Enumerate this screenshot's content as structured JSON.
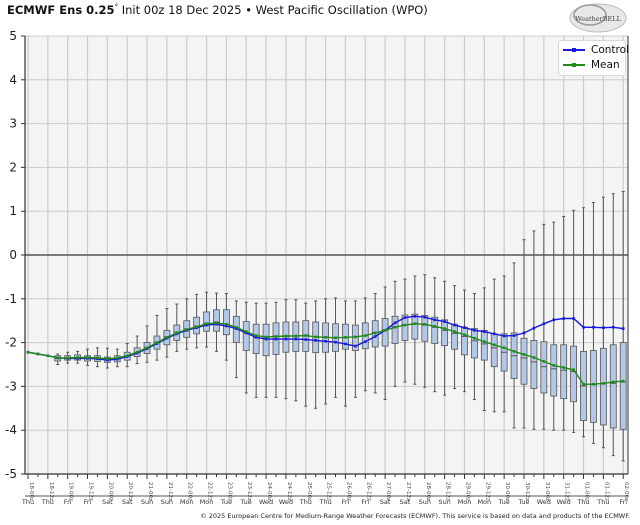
{
  "header": {
    "model": "ECMWF Ens 0.25",
    "degree": "°",
    "subtitle": " Init 00z 18 Dec 2025 • West Pacific Oscillation (WPO)",
    "logo_text": "WeatherBELL"
  },
  "footer": {
    "copyright": "© 2025 European Centre for Medium-Range Weather Forecasts (ECMWF). This service is based on data and products of the ECMWF."
  },
  "legend": {
    "items": [
      {
        "label": "Control",
        "color": "#1a1adb"
      },
      {
        "label": "Mean",
        "color": "#1e8a1e"
      }
    ]
  },
  "colors": {
    "control": "#1a1adb",
    "mean": "#1e8a1e",
    "box_fill": "#b3c8e6",
    "box_stroke": "#555555",
    "whisker": "#555555",
    "grid": "#cccccc",
    "plot_bg": "#f4f4f4",
    "zero_line": "#555555"
  },
  "chart_data": {
    "type": "boxplot+line",
    "title": "ECMWF Ens 0.25° Init 00z 18 Dec 2025 • West Pacific Oscillation (WPO)",
    "xlabel": "",
    "ylabel": "",
    "ylim": [
      -5,
      5
    ],
    "yticks": [
      5,
      4,
      3,
      2,
      1,
      0,
      -1,
      -2,
      -3,
      -4,
      -5
    ],
    "grid": true,
    "legend_position": "upper right",
    "x_tick_labels": [
      "18-00z",
      "18-12z",
      "19-00z",
      "19-12z",
      "20-00z",
      "20-12z",
      "21-00z",
      "21-12z",
      "22-00z",
      "22-12z",
      "23-00z",
      "23-12z",
      "24-00z",
      "24-12z",
      "25-00z",
      "25-12z",
      "26-00z",
      "26-12z",
      "27-00z",
      "27-12z",
      "28-00z",
      "28-12z",
      "29-00z",
      "29-12z",
      "30-00z",
      "30-12z",
      "31-00z",
      "31-12z",
      "01-00z",
      "01-12z",
      "02-00z"
    ],
    "x_day_labels": [
      "Thu",
      "Thu",
      "Fri",
      "Fri",
      "Sat",
      "Sat",
      "Sun",
      "Sun",
      "Mon",
      "Mon",
      "Tue",
      "Tue",
      "Wed",
      "Wed",
      "Thu",
      "Thu",
      "Fri",
      "Fri",
      "Sat",
      "Sat",
      "Sun",
      "Sun",
      "Mon",
      "Mon",
      "Tue",
      "Tue",
      "Wed",
      "Wed",
      "Thu",
      "Thu",
      "Fri"
    ],
    "step_hours": 6,
    "series": [
      {
        "name": "Control",
        "values": [
          -2.22,
          -2.26,
          -2.3,
          -2.35,
          -2.36,
          -2.36,
          -2.36,
          -2.37,
          -2.4,
          -2.38,
          -2.32,
          -2.24,
          -2.14,
          -2.02,
          -1.9,
          -1.8,
          -1.72,
          -1.66,
          -1.6,
          -1.58,
          -1.62,
          -1.68,
          -1.78,
          -1.88,
          -1.92,
          -1.92,
          -1.92,
          -1.92,
          -1.93,
          -1.95,
          -1.97,
          -1.99,
          -2.03,
          -2.08,
          -1.98,
          -1.86,
          -1.72,
          -1.55,
          -1.43,
          -1.4,
          -1.42,
          -1.48,
          -1.52,
          -1.6,
          -1.66,
          -1.72,
          -1.75,
          -1.8,
          -1.85,
          -1.84,
          -1.78,
          -1.67,
          -1.57,
          -1.48,
          -1.45,
          -1.45,
          -1.65,
          -1.65,
          -1.66,
          -1.65,
          -1.68
        ]
      },
      {
        "name": "Mean",
        "values": [
          -2.22,
          -2.26,
          -2.3,
          -2.35,
          -2.35,
          -2.34,
          -2.34,
          -2.35,
          -2.37,
          -2.35,
          -2.3,
          -2.22,
          -2.12,
          -2.0,
          -1.88,
          -1.78,
          -1.7,
          -1.64,
          -1.57,
          -1.55,
          -1.58,
          -1.65,
          -1.75,
          -1.84,
          -1.87,
          -1.86,
          -1.85,
          -1.85,
          -1.84,
          -1.87,
          -1.88,
          -1.89,
          -1.88,
          -1.87,
          -1.84,
          -1.78,
          -1.72,
          -1.65,
          -1.6,
          -1.57,
          -1.58,
          -1.63,
          -1.68,
          -1.75,
          -1.82,
          -1.9,
          -1.98,
          -2.05,
          -2.12,
          -2.2,
          -2.27,
          -2.34,
          -2.43,
          -2.52,
          -2.57,
          -2.62,
          -2.95,
          -2.95,
          -2.93,
          -2.9,
          -2.88
        ]
      }
    ],
    "boxes": {
      "q1": [
        null,
        null,
        null,
        -2.42,
        -2.4,
        -2.4,
        -2.42,
        -2.43,
        -2.45,
        -2.44,
        -2.4,
        -2.32,
        -2.25,
        -2.15,
        -2.05,
        -1.95,
        -1.88,
        -1.8,
        -1.74,
        -1.74,
        -1.82,
        -2.0,
        -2.18,
        -2.25,
        -2.3,
        -2.27,
        -2.22,
        -2.2,
        -2.2,
        -2.23,
        -2.22,
        -2.2,
        -2.15,
        -2.18,
        -2.14,
        -2.1,
        -2.08,
        -2.02,
        -1.95,
        -1.92,
        -1.97,
        -2.02,
        -2.07,
        -2.15,
        -2.28,
        -2.35,
        -2.4,
        -2.55,
        -2.65,
        -2.82,
        -2.95,
        -3.05,
        -3.15,
        -3.22,
        -3.28,
        -3.35,
        -3.78,
        -3.82,
        -3.88,
        -3.95,
        -3.98
      ],
      "q3": [
        null,
        null,
        null,
        -2.3,
        -2.3,
        -2.28,
        -2.3,
        -2.3,
        -2.33,
        -2.3,
        -2.22,
        -2.12,
        -2.0,
        -1.85,
        -1.72,
        -1.6,
        -1.5,
        -1.42,
        -1.3,
        -1.25,
        -1.25,
        -1.4,
        -1.52,
        -1.58,
        -1.58,
        -1.55,
        -1.53,
        -1.53,
        -1.5,
        -1.53,
        -1.55,
        -1.57,
        -1.58,
        -1.6,
        -1.55,
        -1.5,
        -1.45,
        -1.4,
        -1.37,
        -1.35,
        -1.38,
        -1.42,
        -1.48,
        -1.58,
        -1.65,
        -1.68,
        -1.72,
        -1.8,
        -1.8,
        -1.78,
        -1.9,
        -1.95,
        -1.98,
        -2.05,
        -2.05,
        -2.08,
        -2.2,
        -2.18,
        -2.13,
        -2.05,
        -2.0
      ],
      "median": [
        null,
        null,
        null,
        -2.36,
        -2.35,
        -2.34,
        -2.36,
        -2.37,
        -2.39,
        -2.37,
        -2.31,
        -2.23,
        -2.12,
        -1.99,
        -1.87,
        -1.76,
        -1.69,
        -1.62,
        -1.56,
        -1.53,
        -1.58,
        -1.66,
        -1.78,
        -1.88,
        -1.88,
        -1.85,
        -1.86,
        -1.85,
        -1.83,
        -1.86,
        -1.87,
        -1.88,
        -1.89,
        -1.87,
        -1.84,
        -1.77,
        -1.71,
        -1.64,
        -1.59,
        -1.56,
        -1.6,
        -1.65,
        -1.72,
        -1.79,
        -1.86,
        -1.96,
        -2.03,
        -2.12,
        -2.22,
        -2.3,
        -2.35,
        -2.44,
        -2.55,
        -2.6,
        -2.63,
        -2.66,
        -2.99,
        -2.96,
        -2.94,
        -2.93,
        -2.9
      ],
      "min": [
        null,
        null,
        null,
        -2.5,
        -2.47,
        -2.47,
        -2.52,
        -2.55,
        -2.58,
        -2.55,
        -2.55,
        -2.48,
        -2.45,
        -2.4,
        -2.33,
        -2.2,
        -2.15,
        -2.12,
        -2.1,
        -2.2,
        -2.4,
        -2.8,
        -3.15,
        -3.25,
        -3.25,
        -3.25,
        -3.28,
        -3.33,
        -3.45,
        -3.5,
        -3.4,
        -3.25,
        -3.45,
        -3.25,
        -3.1,
        -3.15,
        -3.3,
        -3.0,
        -2.9,
        -2.95,
        -3.02,
        -3.12,
        -3.2,
        -3.05,
        -3.12,
        -3.3,
        -3.55,
        -3.58,
        -3.58,
        -3.95,
        -3.95,
        -3.98,
        -3.98,
        -4.0,
        -4.0,
        -4.05,
        -4.15,
        -4.3,
        -4.4,
        -4.58,
        -4.7
      ],
      "max": [
        null,
        null,
        null,
        -2.26,
        -2.22,
        -2.2,
        -2.15,
        -2.12,
        -2.13,
        -2.15,
        -2.02,
        -1.85,
        -1.62,
        -1.38,
        -1.22,
        -1.12,
        -1.0,
        -0.9,
        -0.85,
        -0.87,
        -0.88,
        -1.05,
        -1.08,
        -1.1,
        -1.1,
        -1.08,
        -1.02,
        -1.02,
        -1.1,
        -1.05,
        -1.0,
        -0.98,
        -1.05,
        -1.05,
        -0.98,
        -0.88,
        -0.73,
        -0.6,
        -0.55,
        -0.48,
        -0.45,
        -0.52,
        -0.6,
        -0.7,
        -0.8,
        -0.88,
        -0.75,
        -0.55,
        -0.48,
        -0.18,
        0.35,
        0.55,
        0.7,
        0.75,
        0.88,
        1.02,
        1.08,
        1.2,
        1.32,
        1.4,
        1.45
      ]
    }
  }
}
